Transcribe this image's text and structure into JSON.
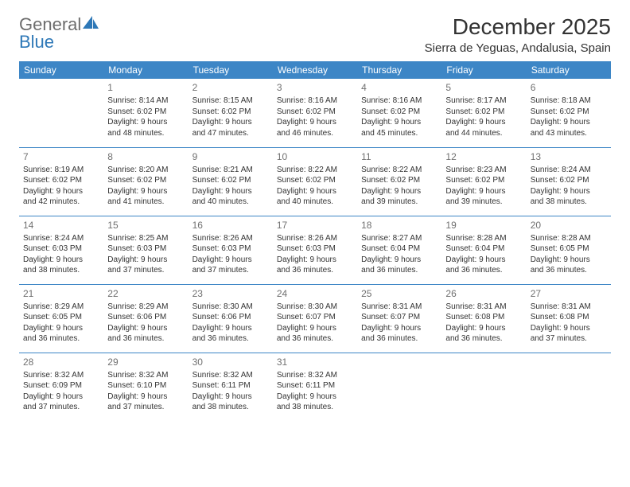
{
  "brand": {
    "part1": "General",
    "part2": "Blue"
  },
  "title": "December 2025",
  "location": "Sierra de Yeguas, Andalusia, Spain",
  "colors": {
    "header_bg": "#3d86c6",
    "header_text": "#ffffff",
    "week_divider": "#3d86c6",
    "daynum": "#707070",
    "body_text": "#333333",
    "brand_blue": "#2e78b7",
    "brand_gray": "#6d6d6d",
    "page_bg": "#ffffff"
  },
  "typography": {
    "month_title_pt": 28,
    "location_pt": 15,
    "weekday_pt": 12,
    "daynum_pt": 12,
    "cell_pt": 10
  },
  "weekdays": [
    "Sunday",
    "Monday",
    "Tuesday",
    "Wednesday",
    "Thursday",
    "Friday",
    "Saturday"
  ],
  "weeks": [
    [
      {
        "n": "",
        "sr": "",
        "ss": "",
        "d1": "",
        "d2": ""
      },
      {
        "n": "1",
        "sr": "Sunrise: 8:14 AM",
        "ss": "Sunset: 6:02 PM",
        "d1": "Daylight: 9 hours",
        "d2": "and 48 minutes."
      },
      {
        "n": "2",
        "sr": "Sunrise: 8:15 AM",
        "ss": "Sunset: 6:02 PM",
        "d1": "Daylight: 9 hours",
        "d2": "and 47 minutes."
      },
      {
        "n": "3",
        "sr": "Sunrise: 8:16 AM",
        "ss": "Sunset: 6:02 PM",
        "d1": "Daylight: 9 hours",
        "d2": "and 46 minutes."
      },
      {
        "n": "4",
        "sr": "Sunrise: 8:16 AM",
        "ss": "Sunset: 6:02 PM",
        "d1": "Daylight: 9 hours",
        "d2": "and 45 minutes."
      },
      {
        "n": "5",
        "sr": "Sunrise: 8:17 AM",
        "ss": "Sunset: 6:02 PM",
        "d1": "Daylight: 9 hours",
        "d2": "and 44 minutes."
      },
      {
        "n": "6",
        "sr": "Sunrise: 8:18 AM",
        "ss": "Sunset: 6:02 PM",
        "d1": "Daylight: 9 hours",
        "d2": "and 43 minutes."
      }
    ],
    [
      {
        "n": "7",
        "sr": "Sunrise: 8:19 AM",
        "ss": "Sunset: 6:02 PM",
        "d1": "Daylight: 9 hours",
        "d2": "and 42 minutes."
      },
      {
        "n": "8",
        "sr": "Sunrise: 8:20 AM",
        "ss": "Sunset: 6:02 PM",
        "d1": "Daylight: 9 hours",
        "d2": "and 41 minutes."
      },
      {
        "n": "9",
        "sr": "Sunrise: 8:21 AM",
        "ss": "Sunset: 6:02 PM",
        "d1": "Daylight: 9 hours",
        "d2": "and 40 minutes."
      },
      {
        "n": "10",
        "sr": "Sunrise: 8:22 AM",
        "ss": "Sunset: 6:02 PM",
        "d1": "Daylight: 9 hours",
        "d2": "and 40 minutes."
      },
      {
        "n": "11",
        "sr": "Sunrise: 8:22 AM",
        "ss": "Sunset: 6:02 PM",
        "d1": "Daylight: 9 hours",
        "d2": "and 39 minutes."
      },
      {
        "n": "12",
        "sr": "Sunrise: 8:23 AM",
        "ss": "Sunset: 6:02 PM",
        "d1": "Daylight: 9 hours",
        "d2": "and 39 minutes."
      },
      {
        "n": "13",
        "sr": "Sunrise: 8:24 AM",
        "ss": "Sunset: 6:02 PM",
        "d1": "Daylight: 9 hours",
        "d2": "and 38 minutes."
      }
    ],
    [
      {
        "n": "14",
        "sr": "Sunrise: 8:24 AM",
        "ss": "Sunset: 6:03 PM",
        "d1": "Daylight: 9 hours",
        "d2": "and 38 minutes."
      },
      {
        "n": "15",
        "sr": "Sunrise: 8:25 AM",
        "ss": "Sunset: 6:03 PM",
        "d1": "Daylight: 9 hours",
        "d2": "and 37 minutes."
      },
      {
        "n": "16",
        "sr": "Sunrise: 8:26 AM",
        "ss": "Sunset: 6:03 PM",
        "d1": "Daylight: 9 hours",
        "d2": "and 37 minutes."
      },
      {
        "n": "17",
        "sr": "Sunrise: 8:26 AM",
        "ss": "Sunset: 6:03 PM",
        "d1": "Daylight: 9 hours",
        "d2": "and 36 minutes."
      },
      {
        "n": "18",
        "sr": "Sunrise: 8:27 AM",
        "ss": "Sunset: 6:04 PM",
        "d1": "Daylight: 9 hours",
        "d2": "and 36 minutes."
      },
      {
        "n": "19",
        "sr": "Sunrise: 8:28 AM",
        "ss": "Sunset: 6:04 PM",
        "d1": "Daylight: 9 hours",
        "d2": "and 36 minutes."
      },
      {
        "n": "20",
        "sr": "Sunrise: 8:28 AM",
        "ss": "Sunset: 6:05 PM",
        "d1": "Daylight: 9 hours",
        "d2": "and 36 minutes."
      }
    ],
    [
      {
        "n": "21",
        "sr": "Sunrise: 8:29 AM",
        "ss": "Sunset: 6:05 PM",
        "d1": "Daylight: 9 hours",
        "d2": "and 36 minutes."
      },
      {
        "n": "22",
        "sr": "Sunrise: 8:29 AM",
        "ss": "Sunset: 6:06 PM",
        "d1": "Daylight: 9 hours",
        "d2": "and 36 minutes."
      },
      {
        "n": "23",
        "sr": "Sunrise: 8:30 AM",
        "ss": "Sunset: 6:06 PM",
        "d1": "Daylight: 9 hours",
        "d2": "and 36 minutes."
      },
      {
        "n": "24",
        "sr": "Sunrise: 8:30 AM",
        "ss": "Sunset: 6:07 PM",
        "d1": "Daylight: 9 hours",
        "d2": "and 36 minutes."
      },
      {
        "n": "25",
        "sr": "Sunrise: 8:31 AM",
        "ss": "Sunset: 6:07 PM",
        "d1": "Daylight: 9 hours",
        "d2": "and 36 minutes."
      },
      {
        "n": "26",
        "sr": "Sunrise: 8:31 AM",
        "ss": "Sunset: 6:08 PM",
        "d1": "Daylight: 9 hours",
        "d2": "and 36 minutes."
      },
      {
        "n": "27",
        "sr": "Sunrise: 8:31 AM",
        "ss": "Sunset: 6:08 PM",
        "d1": "Daylight: 9 hours",
        "d2": "and 37 minutes."
      }
    ],
    [
      {
        "n": "28",
        "sr": "Sunrise: 8:32 AM",
        "ss": "Sunset: 6:09 PM",
        "d1": "Daylight: 9 hours",
        "d2": "and 37 minutes."
      },
      {
        "n": "29",
        "sr": "Sunrise: 8:32 AM",
        "ss": "Sunset: 6:10 PM",
        "d1": "Daylight: 9 hours",
        "d2": "and 37 minutes."
      },
      {
        "n": "30",
        "sr": "Sunrise: 8:32 AM",
        "ss": "Sunset: 6:11 PM",
        "d1": "Daylight: 9 hours",
        "d2": "and 38 minutes."
      },
      {
        "n": "31",
        "sr": "Sunrise: 8:32 AM",
        "ss": "Sunset: 6:11 PM",
        "d1": "Daylight: 9 hours",
        "d2": "and 38 minutes."
      },
      {
        "n": "",
        "sr": "",
        "ss": "",
        "d1": "",
        "d2": ""
      },
      {
        "n": "",
        "sr": "",
        "ss": "",
        "d1": "",
        "d2": ""
      },
      {
        "n": "",
        "sr": "",
        "ss": "",
        "d1": "",
        "d2": ""
      }
    ]
  ]
}
